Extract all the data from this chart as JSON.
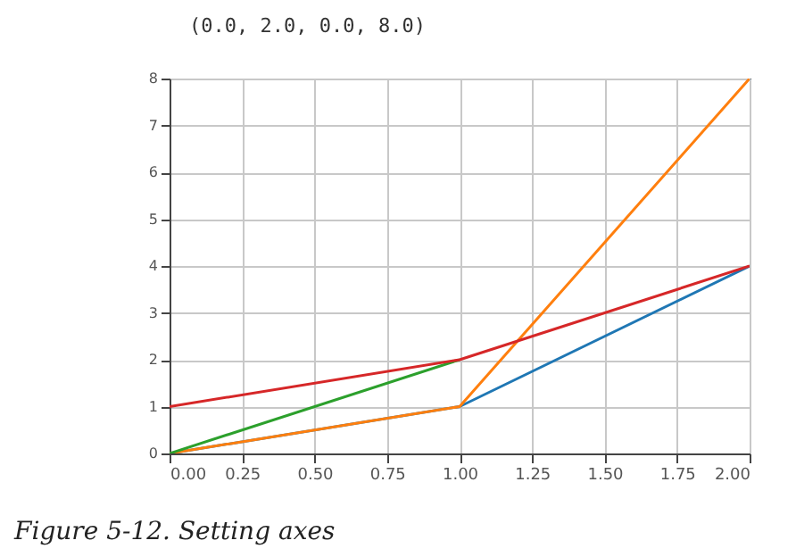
{
  "chart_data": {
    "type": "line",
    "annotations": [
      "(0.0, 2.0, 0.0, 8.0)",
      "Figure 5-12. Setting axes"
    ],
    "x": [
      0,
      1,
      2
    ],
    "series": [
      {
        "color": "#1f77b4",
        "values": [
          0,
          1,
          4
        ]
      },
      {
        "color": "#ff7f0e",
        "values": [
          0,
          1,
          8
        ]
      },
      {
        "color": "#2ca02c",
        "values": [
          0,
          2,
          null
        ]
      },
      {
        "color": "#d62728",
        "values": [
          1,
          2,
          4
        ]
      }
    ],
    "xlim": [
      0,
      2
    ],
    "ylim": [
      0,
      8
    ],
    "xticks": [
      {
        "value": 0,
        "label": "0.00"
      },
      {
        "value": 0.25,
        "label": "0.25"
      },
      {
        "value": 0.5,
        "label": "0.50"
      },
      {
        "value": 0.75,
        "label": "0.75"
      },
      {
        "value": 1,
        "label": "1.00"
      },
      {
        "value": 1.25,
        "label": "1.25"
      },
      {
        "value": 1.5,
        "label": "1.50"
      },
      {
        "value": 1.75,
        "label": "1.75"
      },
      {
        "value": 2,
        "label": "2.00"
      }
    ],
    "yticks": [
      0,
      1,
      2,
      3,
      4,
      5,
      6,
      7,
      8
    ],
    "grid": true
  }
}
